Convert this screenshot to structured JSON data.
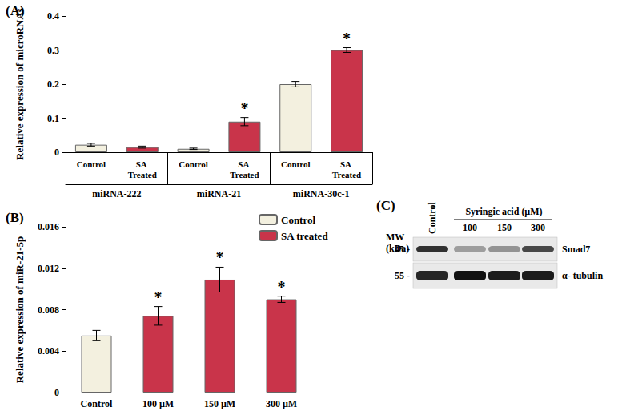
{
  "chart_data": [
    {
      "type": "bar",
      "title": "(A)",
      "y_label": "Relative expression of microRNAs",
      "categories": [
        "Control",
        "SA Treated",
        "Control",
        "SA Treated",
        "Control",
        "SA Treated"
      ],
      "groups": [
        "miRNA-222",
        "miRNA-222",
        "miRNA-21",
        "miRNA-21",
        "miRNA-30c-1",
        "miRNA-30c-1"
      ],
      "values": [
        0.022,
        0.015,
        0.01,
        0.09,
        0.2,
        0.3
      ],
      "errors": [
        0.004,
        0.003,
        0.002,
        0.012,
        0.008,
        0.007
      ],
      "significance": [
        null,
        null,
        null,
        "*",
        null,
        "*"
      ],
      "colors": [
        "#f3f0df",
        "#c9344a",
        "#f3f0df",
        "#c9344a",
        "#f3f0df",
        "#c9344a"
      ],
      "ylim": [
        0,
        0.4
      ],
      "yticks": [
        0,
        0.1,
        0.2,
        0.3,
        0.4
      ],
      "grid": false
    },
    {
      "type": "bar",
      "title": "(B)",
      "y_label": "Relative expression of miR-21-5p",
      "categories": [
        "Control",
        "100 µM",
        "150 µM",
        "300 µM"
      ],
      "series": [
        {
          "name": "Control",
          "color": "#f3f0df",
          "values": [
            0.0055,
            null,
            null,
            null
          ],
          "errors": [
            0.0005,
            null,
            null,
            null
          ],
          "significance": [
            null,
            null,
            null,
            null
          ]
        },
        {
          "name": "SA treated",
          "color": "#c9344a",
          "values": [
            null,
            0.0074,
            0.0109,
            0.009
          ],
          "errors": [
            null,
            0.0009,
            0.0012,
            0.0003
          ],
          "significance": [
            null,
            "*",
            "*",
            "*"
          ]
        }
      ],
      "ylim": [
        0,
        0.016
      ],
      "yticks": [
        0,
        0.004,
        0.008,
        0.012,
        0.016
      ],
      "grid": false,
      "legend": "top-right"
    }
  ],
  "blot": {
    "label": "(C)",
    "mw_label": "MW (kDa)",
    "treatment": "Syringic acid (µM)",
    "lanes": [
      "Control",
      "100",
      "150",
      "300"
    ],
    "bands": [
      {
        "name": "Smad7",
        "mw_label": "45 -",
        "intensity": [
          0.85,
          0.35,
          0.4,
          0.75
        ]
      },
      {
        "name": "α- tubulin",
        "mw_label": "55 -",
        "intensity": [
          0.9,
          1,
          0.95,
          0.95
        ]
      }
    ]
  }
}
